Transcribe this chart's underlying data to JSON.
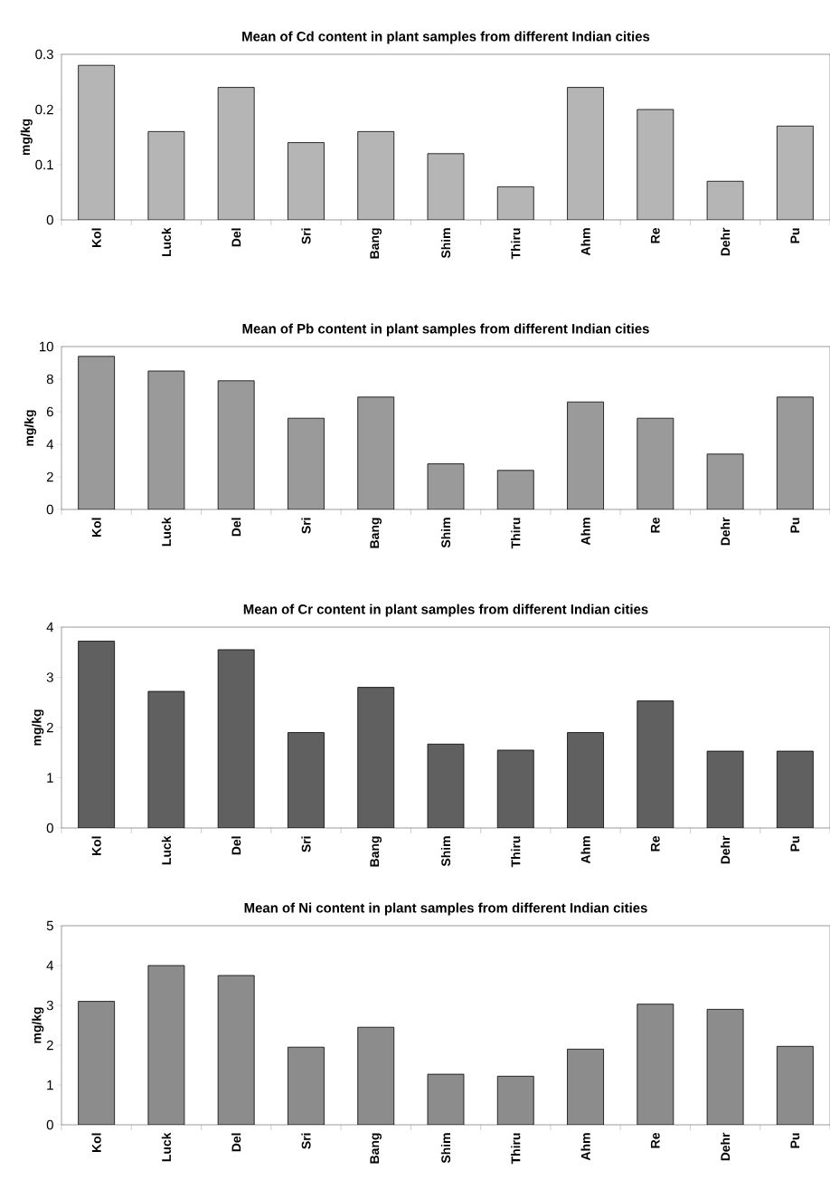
{
  "chart_data": [
    {
      "type": "bar",
      "title": "Mean of Cd content in plant samples from different Indian cities",
      "ylabel": "mg/kg",
      "categories": [
        "Kol",
        "Luck",
        "Del",
        "Sri",
        "Bang",
        "Shim",
        "Thiru",
        "Ahm",
        "Re",
        "Dehr",
        "Pu"
      ],
      "values": [
        0.28,
        0.16,
        0.24,
        0.14,
        0.16,
        0.12,
        0.06,
        0.24,
        0.2,
        0.07,
        0.17
      ],
      "color": "#b5b5b5",
      "ylim": [
        0,
        0.3
      ],
      "yticks": [
        0,
        0.1,
        0.2,
        0.3
      ],
      "grid": false
    },
    {
      "type": "bar",
      "title": "Mean of Pb content in plant samples from different Indian cities",
      "ylabel": "mg/kg",
      "categories": [
        "Kol",
        "Luck",
        "Del",
        "Sri",
        "Bang",
        "Shim",
        "Thiru",
        "Ahm",
        "Re",
        "Dehr",
        "Pu"
      ],
      "values": [
        9.4,
        8.5,
        7.9,
        5.6,
        6.9,
        2.8,
        2.4,
        6.6,
        5.6,
        3.4,
        6.9
      ],
      "color": "#9a9a9a",
      "ylim": [
        0,
        10
      ],
      "yticks": [
        0,
        2,
        4,
        6,
        8,
        10
      ],
      "grid": false
    },
    {
      "type": "bar",
      "title": "Mean of Cr content in plant samples from different Indian cities",
      "ylabel": "mg/kg",
      "categories": [
        "Kol",
        "Luck",
        "Del",
        "Sri",
        "Bang",
        "Shim",
        "Thiru",
        "Ahm",
        "Re",
        "Dehr",
        "Pu"
      ],
      "values": [
        3.72,
        2.72,
        3.55,
        1.9,
        2.8,
        1.67,
        1.55,
        1.9,
        2.53,
        1.53,
        1.53
      ],
      "color": "#606060",
      "ylim": [
        0,
        4
      ],
      "yticks": [
        0,
        1,
        2,
        3,
        4
      ],
      "grid": false
    },
    {
      "type": "bar",
      "title": "Mean of Ni content in plant samples from different Indian cities",
      "ylabel": "mg/kg",
      "categories": [
        "Kol",
        "Luck",
        "Del",
        "Sri",
        "Bang",
        "Shim",
        "Thiru",
        "Ahm",
        "Re",
        "Dehr",
        "Pu"
      ],
      "values": [
        3.1,
        4.0,
        3.75,
        1.95,
        2.45,
        1.27,
        1.22,
        1.9,
        3.03,
        2.9,
        1.97
      ],
      "color": "#8c8c8c",
      "ylim": [
        0,
        5
      ],
      "yticks": [
        0,
        1,
        2,
        3,
        4,
        5
      ],
      "grid": false
    }
  ]
}
